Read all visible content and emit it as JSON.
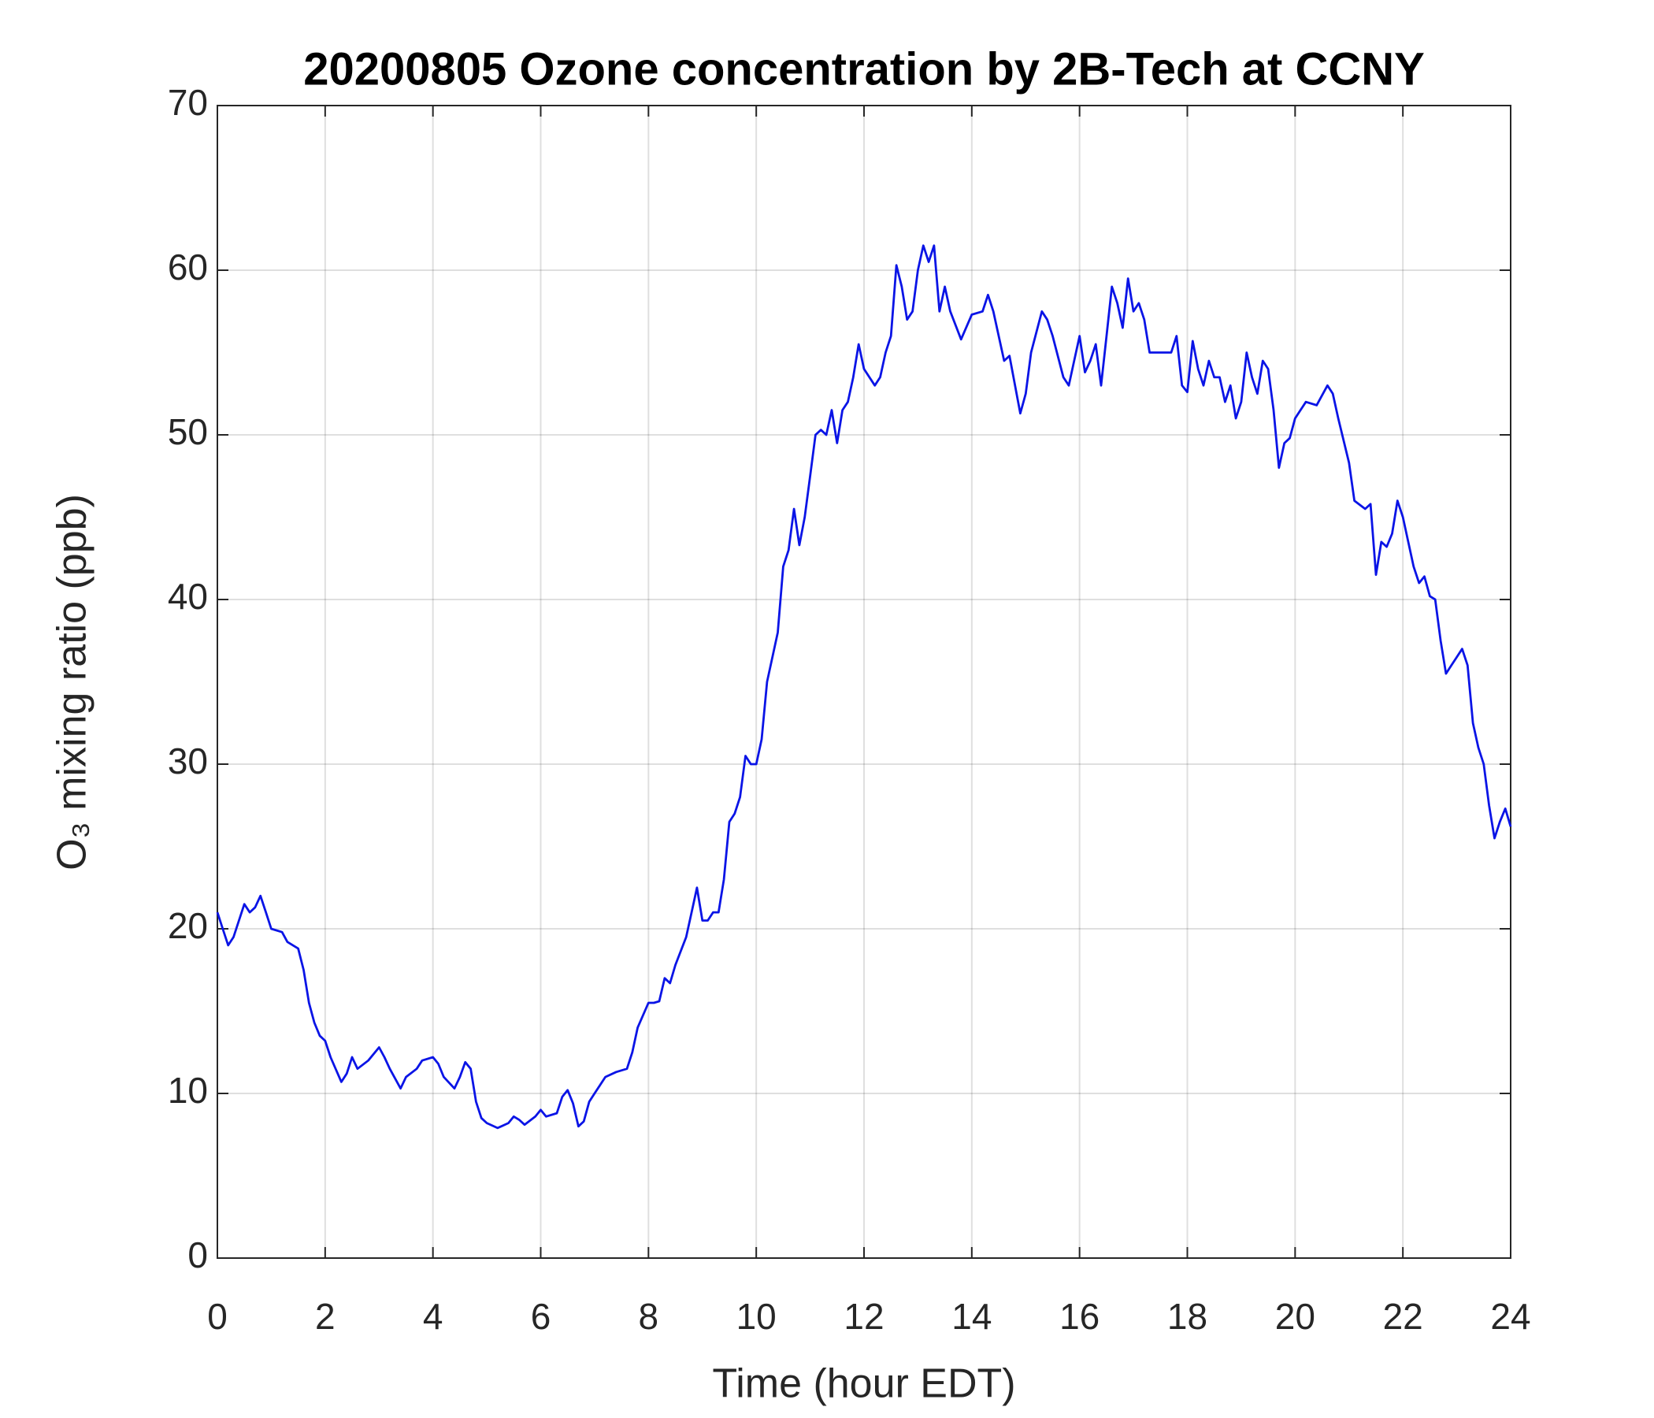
{
  "chart_data": {
    "type": "line",
    "title": "20200805 Ozone concentration by 2B-Tech at CCNY",
    "xlabel": "Time (hour EDT)",
    "ylabel": "O₃ mixing ratio (ppb)",
    "xlim": [
      0,
      24
    ],
    "xticks": [
      0,
      2,
      4,
      6,
      8,
      10,
      12,
      14,
      16,
      18,
      20,
      22,
      24
    ],
    "ylim": [
      0,
      70
    ],
    "yticks": [
      0,
      10,
      20,
      30,
      40,
      50,
      60,
      70
    ],
    "grid": true,
    "series": [
      {
        "color": "#0a14e6",
        "x": [
          0,
          0.1,
          0.2,
          0.3,
          0.5,
          0.6,
          0.7,
          0.8,
          0.9,
          1.0,
          1.2,
          1.3,
          1.5,
          1.6,
          1.7,
          1.8,
          1.9,
          2.0,
          2.1,
          2.3,
          2.4,
          2.5,
          2.6,
          2.8,
          3.0,
          3.1,
          3.2,
          3.4,
          3.5,
          3.7,
          3.8,
          4.0,
          4.1,
          4.2,
          4.4,
          4.5,
          4.6,
          4.7,
          4.8,
          4.9,
          5.0,
          5.2,
          5.4,
          5.5,
          5.6,
          5.7,
          5.9,
          6.0,
          6.1,
          6.3,
          6.4,
          6.5,
          6.6,
          6.7,
          6.8,
          6.9,
          7.0,
          7.2,
          7.4,
          7.6,
          7.7,
          7.8,
          8.0,
          8.1,
          8.2,
          8.3,
          8.4,
          8.5,
          8.7,
          8.8,
          8.9,
          9.0,
          9.1,
          9.2,
          9.3,
          9.4,
          9.5,
          9.6,
          9.7,
          9.8,
          9.9,
          10.0,
          10.1,
          10.2,
          10.4,
          10.5,
          10.6,
          10.7,
          10.8,
          10.9,
          11.0,
          11.1,
          11.2,
          11.3,
          11.4,
          11.5,
          11.6,
          11.7,
          11.8,
          11.9,
          12.0,
          12.2,
          12.3,
          12.4,
          12.5,
          12.6,
          12.7,
          12.8,
          12.9,
          13.0,
          13.1,
          13.2,
          13.3,
          13.4,
          13.5,
          13.6,
          13.8,
          14.0,
          14.2,
          14.3,
          14.4,
          14.6,
          14.7,
          14.9,
          15.0,
          15.1,
          15.3,
          15.4,
          15.5,
          15.7,
          15.8,
          15.9,
          16.0,
          16.1,
          16.2,
          16.3,
          16.4,
          16.5,
          16.6,
          16.7,
          16.8,
          16.9,
          17.0,
          17.1,
          17.2,
          17.3,
          17.5,
          17.7,
          17.8,
          17.9,
          18.0,
          18.1,
          18.2,
          18.3,
          18.4,
          18.5,
          18.6,
          18.7,
          18.8,
          18.9,
          19.0,
          19.1,
          19.2,
          19.3,
          19.4,
          19.5,
          19.6,
          19.7,
          19.8,
          19.9,
          20.0,
          20.2,
          20.4,
          20.6,
          20.7,
          20.8,
          21.0,
          21.1,
          21.3,
          21.4,
          21.5,
          21.6,
          21.7,
          21.8,
          21.9,
          22.0,
          22.1,
          22.2,
          22.3,
          22.4,
          22.5,
          22.6,
          22.7,
          22.8,
          22.9,
          23.0,
          23.1,
          23.2,
          23.3,
          23.4,
          23.5,
          23.6,
          23.7,
          23.8,
          23.9,
          24.0
        ],
        "values": [
          21,
          20,
          19,
          19.5,
          21.5,
          21,
          21.3,
          22,
          21,
          20,
          19.8,
          19.2,
          18.8,
          17.5,
          15.5,
          14.3,
          13.5,
          13.2,
          12.2,
          10.7,
          11.2,
          12.2,
          11.5,
          12,
          12.8,
          12.2,
          11.5,
          10.3,
          11,
          11.5,
          12,
          12.2,
          11.8,
          11,
          10.3,
          11,
          11.9,
          11.5,
          9.5,
          8.5,
          8.2,
          7.9,
          8.2,
          8.6,
          8.4,
          8.1,
          8.6,
          9,
          8.6,
          8.8,
          9.8,
          10.2,
          9.4,
          8,
          8.3,
          9.5,
          10,
          11,
          11.3,
          11.5,
          12.5,
          14,
          15.5,
          15.5,
          15.6,
          17,
          16.7,
          17.8,
          19.5,
          21,
          22.5,
          20.5,
          20.5,
          21,
          21,
          23,
          26.5,
          27,
          28,
          30.5,
          30,
          30,
          31.5,
          35,
          38,
          42,
          43,
          45.5,
          43.3,
          45,
          47.5,
          50,
          50.3,
          50,
          51.5,
          49.5,
          51.5,
          52,
          53.5,
          55.5,
          54,
          53,
          53.5,
          55,
          56,
          60.3,
          59,
          57,
          57.5,
          60,
          61.5,
          60.5,
          61.5,
          57.5,
          59,
          57.5,
          55.8,
          57.3,
          57.5,
          58.5,
          57.5,
          54.5,
          54.8,
          51.3,
          52.5,
          55,
          57.5,
          57,
          56,
          53.5,
          53,
          54.5,
          56,
          53.8,
          54.5,
          55.5,
          53,
          56,
          59,
          58,
          56.5,
          59.5,
          57.5,
          58,
          57,
          55,
          55,
          55,
          56,
          53,
          52.6,
          55.7,
          54,
          53,
          54.5,
          53.5,
          53.5,
          52,
          53,
          51,
          52,
          55,
          53.5,
          52.5,
          54.5,
          54,
          51.5,
          48,
          49.5,
          49.8,
          51,
          52,
          51.8,
          53,
          52.5,
          51,
          48.3,
          46,
          45.5,
          45.8,
          41.5,
          43.5,
          43.2,
          44,
          46,
          45,
          43.5,
          42,
          41,
          41.4,
          40.2,
          40,
          37.5,
          35.5,
          36,
          36.5,
          37,
          36,
          32.5,
          31,
          30,
          27.5,
          25.5,
          26.5,
          27.3,
          26.2
        ]
      }
    ]
  }
}
